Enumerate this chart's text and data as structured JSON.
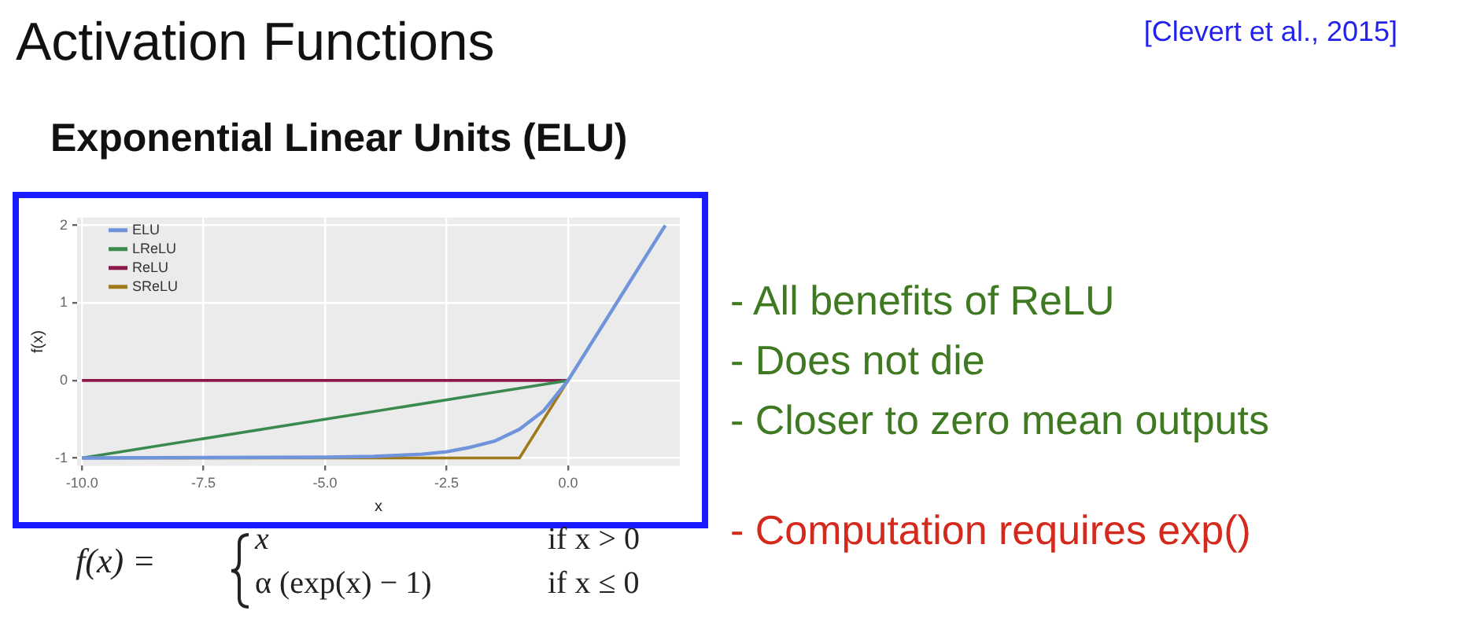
{
  "chart_data": {
    "type": "line",
    "title": "Activation Functions",
    "subtitle": "Exponential Linear Units (ELU)",
    "xlabel": "x",
    "ylabel": "f(x)",
    "annotations": [
      "[Clevert et al., 2015]",
      "- All benefits of ReLU",
      "- Does not die",
      "- Closer to zero mean outputs",
      "- Computation requires exp()",
      "f(x) =",
      "x",
      "if x > 0",
      "α (exp(x) − 1)",
      "if x ≤ 0"
    ],
    "xlim": [
      -10.1,
      2.3
    ],
    "xticks": [
      {
        "value": -10,
        "label": "-10.0"
      },
      -7.5,
      {
        "value": -5,
        "label": "-5.0"
      },
      -2.5,
      {
        "value": 0,
        "label": "0.0"
      }
    ],
    "ylim": [
      -1.1,
      2.1
    ],
    "yticks": [
      -1,
      0,
      1,
      2
    ],
    "grid": true,
    "legend": "top left",
    "marker": "none",
    "line_style": "solid",
    "series": [
      {
        "name": "ELU",
        "color": "#6f94dc",
        "x": [
          -10,
          -5,
          -4,
          -3,
          -2.5,
          -2,
          -1.5,
          -1,
          -0.5,
          0,
          2
        ],
        "values": [
          -1,
          -0.99,
          -0.98,
          -0.95,
          -0.92,
          -0.86,
          -0.78,
          -0.63,
          -0.39,
          0,
          2
        ]
      },
      {
        "name": "LReLU",
        "color": "#3a8a4f",
        "x": [
          -10,
          0
        ],
        "values": [
          -1,
          0
        ]
      },
      {
        "name": "ReLU",
        "color": "#8b1a4a",
        "x": [
          -10,
          0
        ],
        "values": [
          0,
          0
        ]
      },
      {
        "name": "SReLU",
        "color": "#a07a1a",
        "x": [
          -10,
          -1,
          0
        ],
        "values": [
          -1,
          -1,
          0
        ]
      }
    ]
  }
}
